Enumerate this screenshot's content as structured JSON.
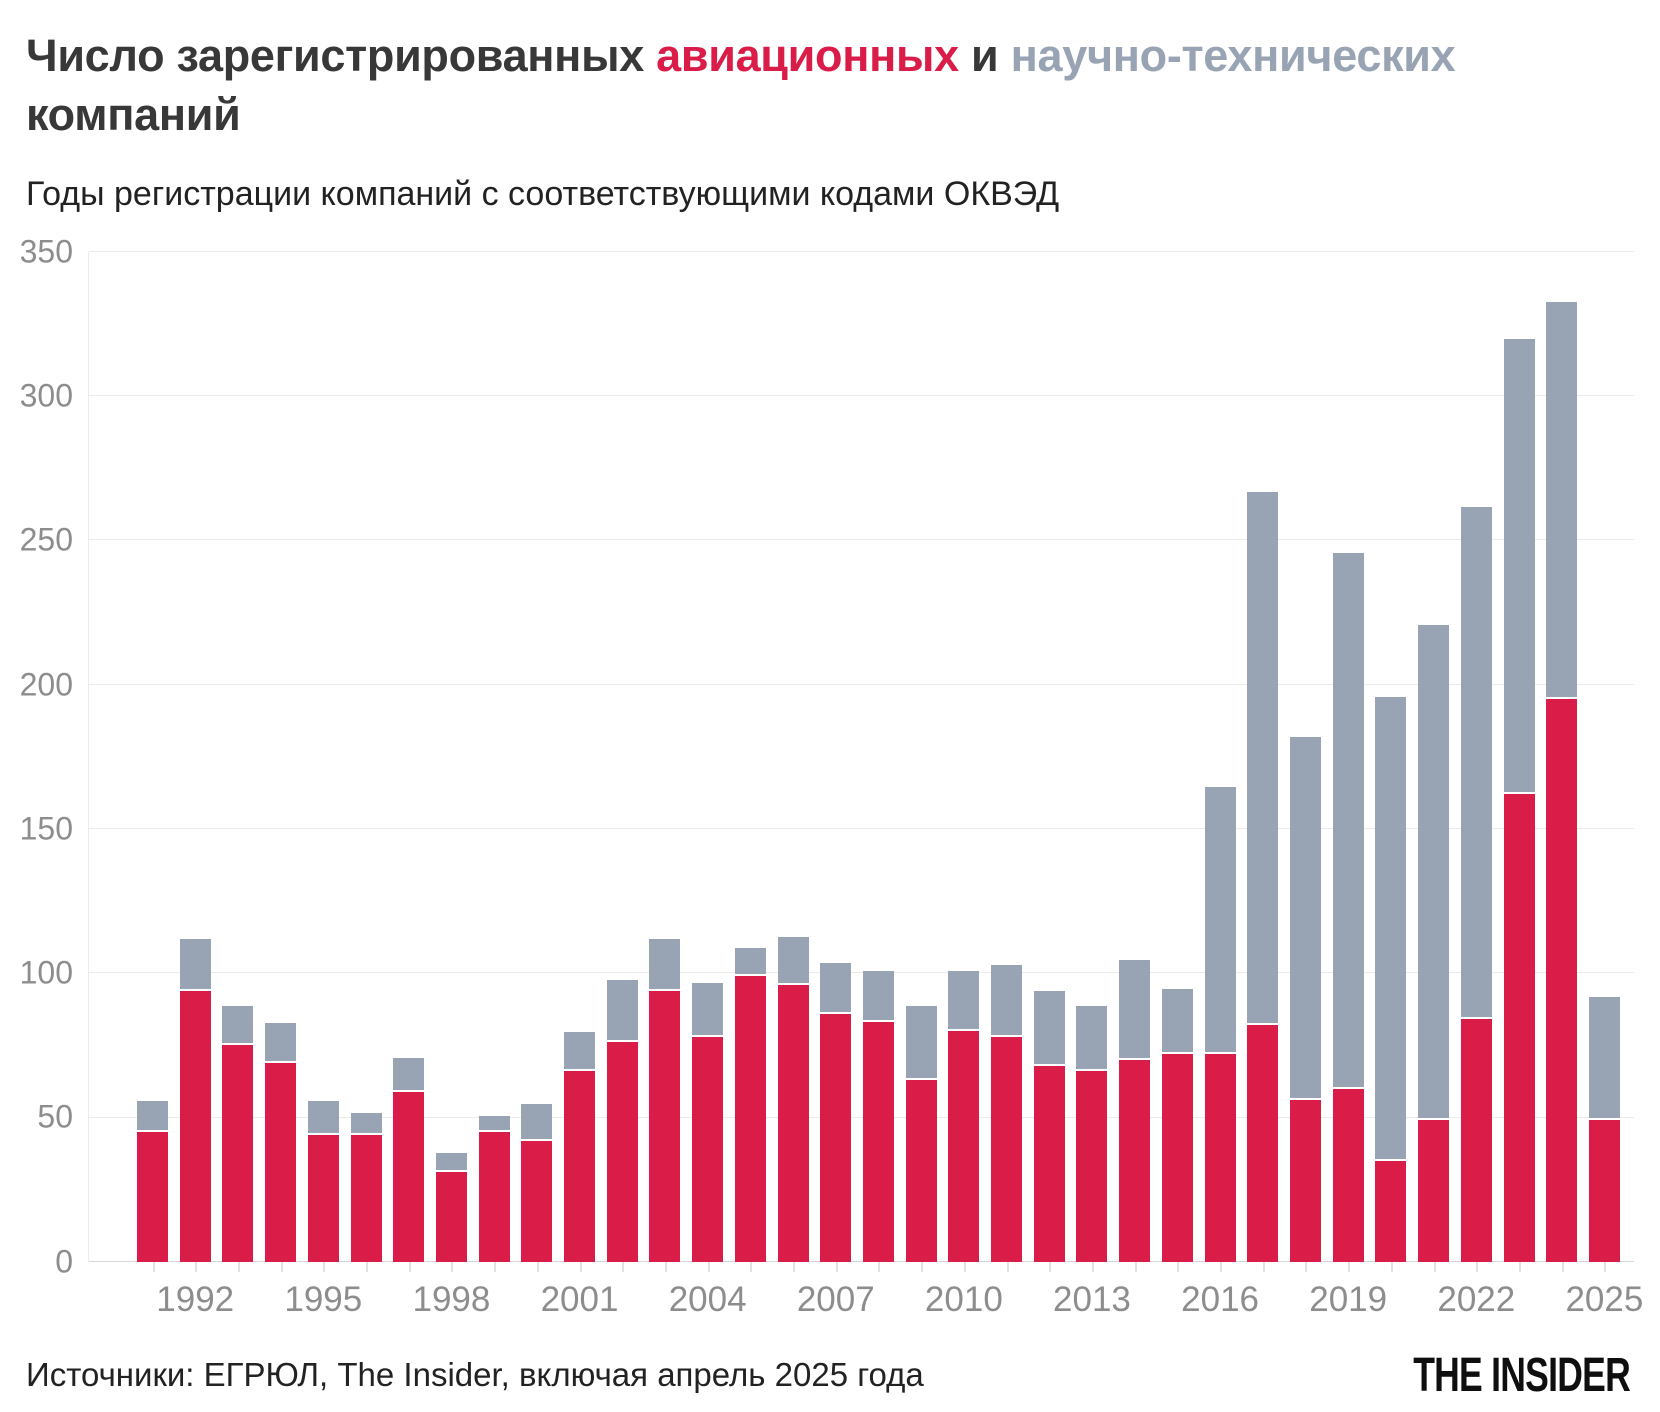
{
  "title": {
    "parts": [
      {
        "text": "Число зарегистрированных ",
        "color": "#383838"
      },
      {
        "text": "авиационных",
        "color": "#d91c48"
      },
      {
        "text": " и ",
        "color": "#383838"
      },
      {
        "text": "научно-технических ",
        "color": "#98a3b3"
      },
      {
        "text": "компаний",
        "color": "#383838"
      }
    ]
  },
  "subtitle": "Годы регистрации компаний с соответствующими кодами ОКВЭД",
  "source": "Источники: ЕГРЮЛ, The Insider, включая апрель 2025 года",
  "logo": "THE INSIDER",
  "colors": {
    "aviation": "#d91c48",
    "scitech": "#98a3b3",
    "grid": "#ebebeb",
    "axis_text": "#8d8d8d",
    "title_dark": "#383838",
    "background": "#ffffff"
  },
  "chart_data": {
    "type": "bar",
    "stacked": true,
    "title": "Число зарегистрированных авиационных и научно-технических компаний",
    "subtitle": "Годы регистрации компаний с соответствующими кодами ОКВЭД",
    "xlabel": "",
    "ylabel": "",
    "ylim": [
      0,
      350
    ],
    "yticks": [
      0,
      50,
      100,
      150,
      200,
      250,
      300,
      350
    ],
    "grid": true,
    "legend_position": "inline-in-title",
    "categories": [
      1991,
      1992,
      1993,
      1994,
      1995,
      1996,
      1997,
      1998,
      1999,
      2000,
      2001,
      2002,
      2003,
      2004,
      2005,
      2006,
      2007,
      2008,
      2009,
      2010,
      2011,
      2012,
      2013,
      2014,
      2015,
      2016,
      2017,
      2018,
      2019,
      2020,
      2021,
      2022,
      2023,
      2024,
      2025
    ],
    "xtick_labels": [
      "1992",
      "1995",
      "1998",
      "2001",
      "2004",
      "2007",
      "2010",
      "2013",
      "2016",
      "2019",
      "2022",
      "2025"
    ],
    "series": [
      {
        "name": "авиационных",
        "color": "#d91c48",
        "values": [
          45,
          94,
          75,
          69,
          44,
          44,
          59,
          31,
          45,
          42,
          66,
          76,
          94,
          78,
          99,
          96,
          86,
          83,
          63,
          80,
          78,
          68,
          66,
          70,
          72,
          72,
          82,
          56,
          60,
          35,
          49,
          84,
          162,
          195,
          49
        ]
      },
      {
        "name": "научно-технических",
        "color": "#98a3b3",
        "values": [
          10,
          17,
          13,
          13,
          11,
          7,
          11,
          6,
          5,
          12,
          13,
          21,
          17,
          18,
          9,
          16,
          17,
          17,
          25,
          20,
          24,
          25,
          22,
          34,
          22,
          92,
          184,
          125,
          185,
          160,
          171,
          177,
          157,
          137,
          42
        ]
      }
    ],
    "totals": [
      55,
      111,
      88,
      82,
      55,
      51,
      70,
      37,
      50,
      54,
      79,
      97,
      111,
      96,
      108,
      112,
      103,
      100,
      88,
      100,
      102,
      93,
      88,
      104,
      94,
      164,
      266,
      181,
      245,
      195,
      220,
      261,
      319,
      332,
      91
    ]
  }
}
